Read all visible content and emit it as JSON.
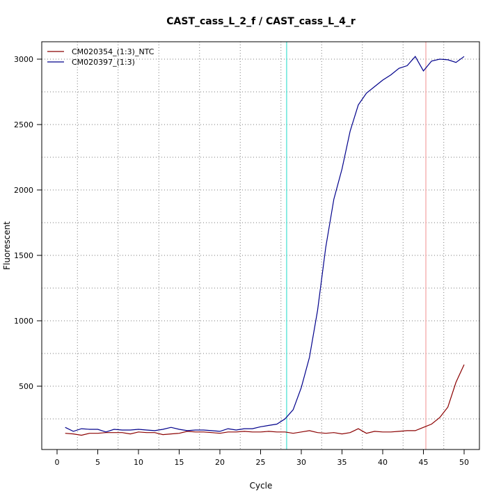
{
  "chart_data": {
    "type": "line",
    "title": "CAST_cass_L_2_f / CAST_cass_L_4_r",
    "xlabel": "Cycle",
    "ylabel": "Fluorescent",
    "xlim": [
      0,
      50
    ],
    "ylim": [
      0,
      3000
    ],
    "x_ticks": [
      0,
      5,
      10,
      15,
      20,
      25,
      30,
      35,
      40,
      45,
      50
    ],
    "y_ticks": [
      500,
      1000,
      1500,
      2000,
      2500,
      3000
    ],
    "grid": true,
    "legend_position": "top-left",
    "vertical_lines": [
      {
        "x": 28.2,
        "color": "#40e0d0"
      },
      {
        "x": 45.3,
        "color": "#f4a0a0"
      }
    ],
    "x": [
      1,
      2,
      3,
      4,
      5,
      6,
      7,
      8,
      9,
      10,
      11,
      12,
      13,
      14,
      15,
      16,
      17,
      18,
      19,
      20,
      21,
      22,
      23,
      24,
      25,
      26,
      27,
      28,
      29,
      30,
      31,
      32,
      33,
      34,
      35,
      36,
      37,
      38,
      39,
      40,
      41,
      42,
      43,
      44,
      45,
      46,
      47,
      48,
      49,
      50
    ],
    "series": [
      {
        "name": "CM020354_(1:3)_NTC",
        "color": "#8b0000",
        "values": [
          140,
          135,
          125,
          140,
          140,
          145,
          145,
          145,
          135,
          150,
          145,
          145,
          130,
          135,
          140,
          155,
          150,
          150,
          145,
          140,
          150,
          150,
          155,
          150,
          150,
          155,
          150,
          150,
          140,
          150,
          160,
          145,
          140,
          145,
          135,
          145,
          175,
          140,
          155,
          150,
          150,
          155,
          160,
          160,
          185,
          210,
          260,
          340,
          530,
          665
        ]
      },
      {
        "name": "CM020397_(1:3)",
        "color": "#00008b",
        "values": [
          185,
          155,
          175,
          170,
          170,
          150,
          170,
          165,
          165,
          170,
          165,
          160,
          170,
          185,
          170,
          160,
          165,
          165,
          160,
          155,
          175,
          165,
          175,
          175,
          190,
          200,
          210,
          250,
          320,
          490,
          720,
          1080,
          1560,
          1930,
          2160,
          2450,
          2650,
          2740,
          2790,
          2840,
          2880,
          2930,
          2950,
          3020,
          2910,
          2985,
          3000,
          2995,
          2975,
          3020
        ]
      }
    ]
  }
}
